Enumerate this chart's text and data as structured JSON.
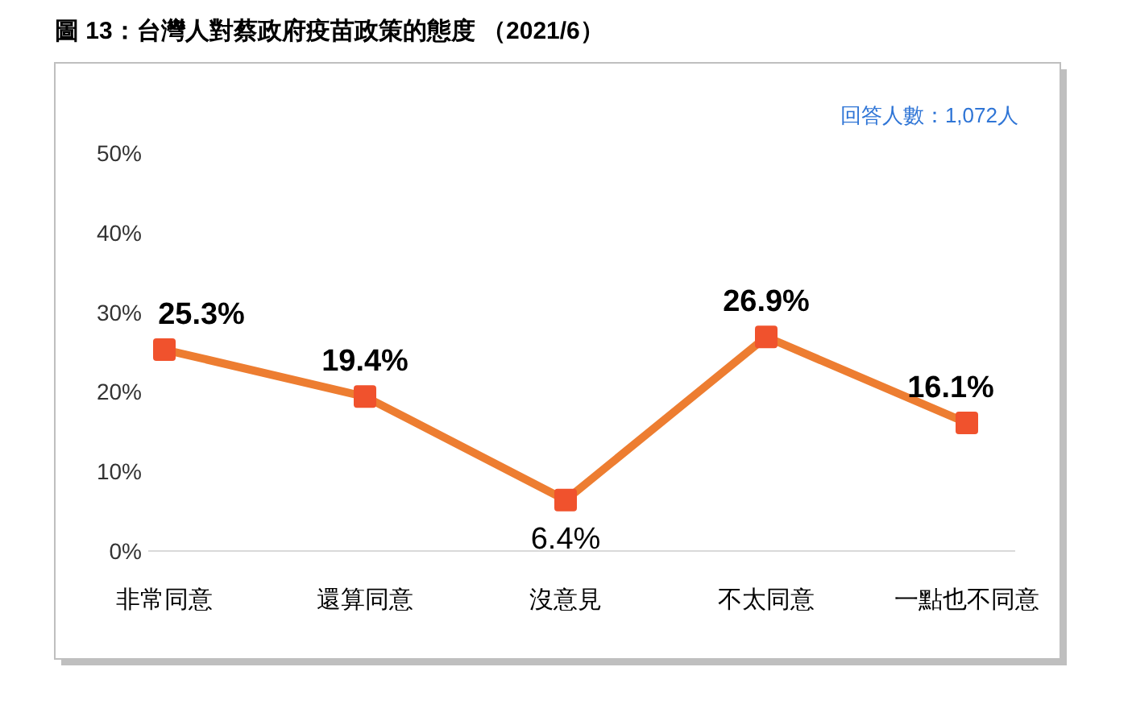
{
  "chart_data": {
    "type": "line",
    "title": "圖 13：台灣人對蔡政府疫苗政策的態度 （2021/6）",
    "annotations": [
      "回答人數：1,072人"
    ],
    "categories": [
      "非常同意",
      "還算同意",
      "沒意見",
      "不太同意",
      "一點也不同意"
    ],
    "series": [
      {
        "color": "#ed7d31",
        "values": [
          25.3,
          19.4,
          6.4,
          26.9,
          16.1
        ]
      }
    ],
    "ylim": [
      0,
      50
    ],
    "yticks": [
      {
        "value": 0,
        "label": "0%"
      },
      {
        "value": 10,
        "label": "10%"
      },
      {
        "value": 20,
        "label": "20%"
      },
      {
        "value": 30,
        "label": "30%"
      },
      {
        "value": 40,
        "label": "40%"
      },
      {
        "value": 50,
        "label": "50%"
      }
    ],
    "value_labels": [
      "25.3%",
      "19.4%",
      "6.4%",
      "26.9%",
      "16.1%"
    ],
    "marker": "square",
    "line_style": "solid"
  }
}
